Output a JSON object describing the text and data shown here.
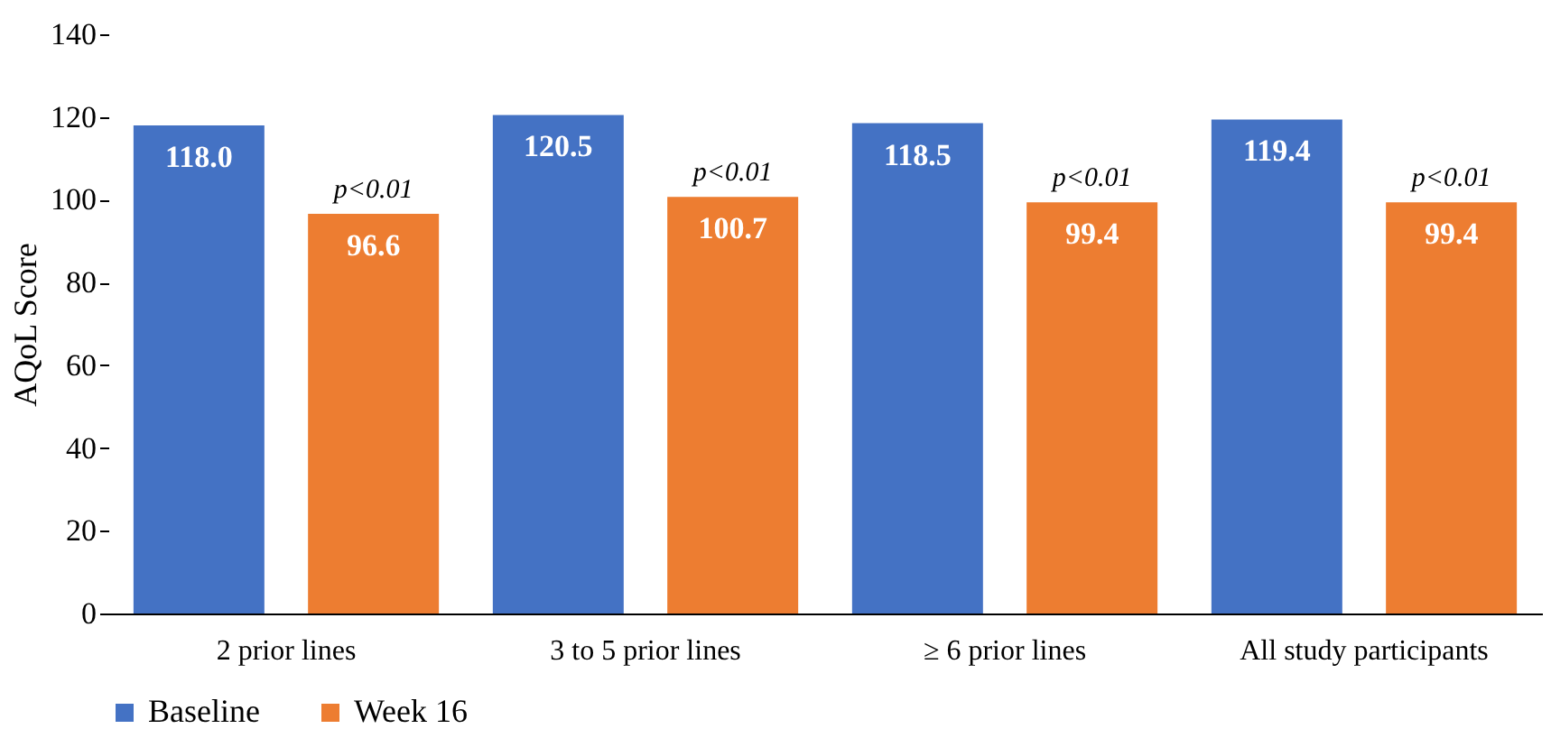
{
  "chart_data": {
    "type": "bar",
    "ylabel": "AQoL Score",
    "categories": [
      "2 prior lines",
      "3 to 5 prior lines",
      "≥ 6 prior lines",
      "All study participants"
    ],
    "series": [
      {
        "name": "Baseline",
        "color": "#4472c4",
        "values": [
          118.0,
          120.5,
          118.5,
          119.4
        ],
        "value_labels": [
          "118.0",
          "120.5",
          "118.5",
          "119.4"
        ]
      },
      {
        "name": "Week 16",
        "color": "#ed7d31",
        "values": [
          96.6,
          100.7,
          99.4,
          99.4
        ],
        "value_labels": [
          "96.6",
          "100.7",
          "99.4",
          "99.4"
        ]
      }
    ],
    "ylim": [
      0,
      140
    ],
    "yticks": [
      0,
      20,
      40,
      60,
      80,
      100,
      120,
      140
    ],
    "grid": false,
    "legend": "bottom",
    "annotations": [
      "p<0.01",
      "p<0.01",
      "p<0.01",
      "p<0.01"
    ]
  }
}
